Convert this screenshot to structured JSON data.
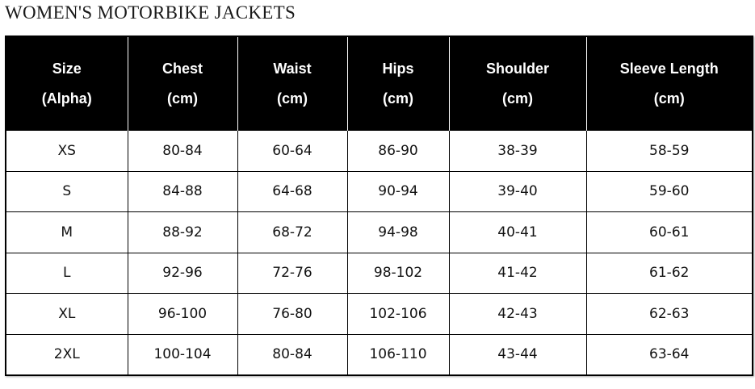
{
  "title": "WOMEN'S MOTORBIKE JACKETS",
  "columns": [
    {
      "name": "Size",
      "unit": "(Alpha)"
    },
    {
      "name": "Chest",
      "unit": "(cm)"
    },
    {
      "name": "Waist",
      "unit": "(cm)"
    },
    {
      "name": "Hips",
      "unit": "(cm)"
    },
    {
      "name": "Shoulder",
      "unit": "(cm)"
    },
    {
      "name": "Sleeve Length",
      "unit": "(cm)"
    }
  ],
  "rows": [
    [
      "XS",
      "80-84",
      "60-64",
      "86-90",
      "38-39",
      "58-59"
    ],
    [
      "S",
      "84-88",
      "64-68",
      "90-94",
      "39-40",
      "59-60"
    ],
    [
      "M",
      "88-92",
      "68-72",
      "94-98",
      "40-41",
      "60-61"
    ],
    [
      "L",
      "92-96",
      "72-76",
      "98-102",
      "41-42",
      "61-62"
    ],
    [
      "XL",
      "96-100",
      "76-80",
      "102-106",
      "42-43",
      "62-63"
    ],
    [
      "2XL",
      "100-104",
      "80-84",
      "106-110",
      "43-44",
      "63-64"
    ]
  ]
}
